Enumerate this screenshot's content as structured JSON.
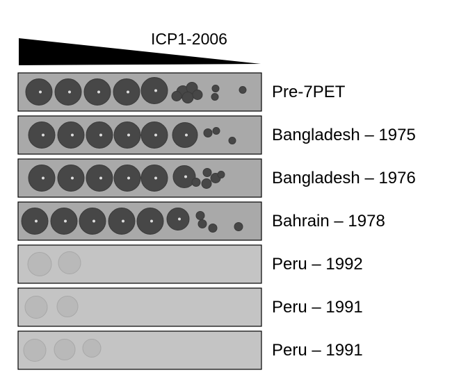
{
  "figure": {
    "title": "ICP1-2006",
    "rows": [
      {
        "label": "Pre-7PET"
      },
      {
        "label": "Bangladesh – 1975"
      },
      {
        "label": "Bangladesh – 1976"
      },
      {
        "label": "Bahrain – 1978"
      },
      {
        "label": "Peru – 1992"
      },
      {
        "label": "Peru – 1991"
      },
      {
        "label": "Peru – 1991"
      }
    ]
  }
}
